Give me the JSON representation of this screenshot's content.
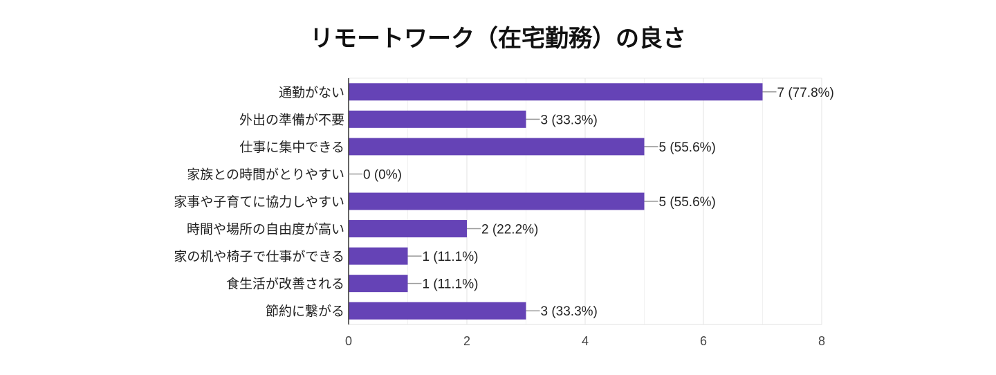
{
  "chart_data": {
    "type": "bar",
    "orientation": "horizontal",
    "title": "リモートワーク（在宅勤務）の良さ",
    "categories": [
      "通勤がない",
      "外出の準備が不要",
      "仕事に集中できる",
      "家族との時間がとりやすい",
      "家事や子育てに協力しやすい",
      "時間や場所の自由度が高い",
      "家の机や椅子で仕事ができる",
      "食生活が改善される",
      "節約に繋がる"
    ],
    "values": [
      7,
      3,
      5,
      0,
      5,
      2,
      1,
      1,
      3
    ],
    "value_labels": [
      "7 (77.8%)",
      "3 (33.3%)",
      "5 (55.6%)",
      "0 (0%)",
      "5 (55.6%)",
      "2 (22.2%)",
      "1 (11.1%)",
      "1 (11.1%)",
      "3 (33.3%)"
    ],
    "xlim": [
      0,
      8
    ],
    "xticks": [
      "0",
      "2",
      "4",
      "6",
      "8"
    ],
    "grid": true,
    "bar_color": "#6543b6"
  }
}
